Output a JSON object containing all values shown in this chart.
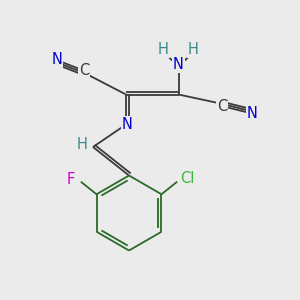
{
  "bg_color": "#ebebeb",
  "bond_color": "#3a3a3a",
  "atom_colors": {
    "N": "#0000cc",
    "C": "#3a3a3a",
    "H": "#3a8a8a",
    "F": "#cc00cc",
    "Cl": "#33bb33"
  },
  "figsize": [
    3.0,
    3.0
  ],
  "dpi": 100,
  "lw": 1.3,
  "fs": 10.5
}
